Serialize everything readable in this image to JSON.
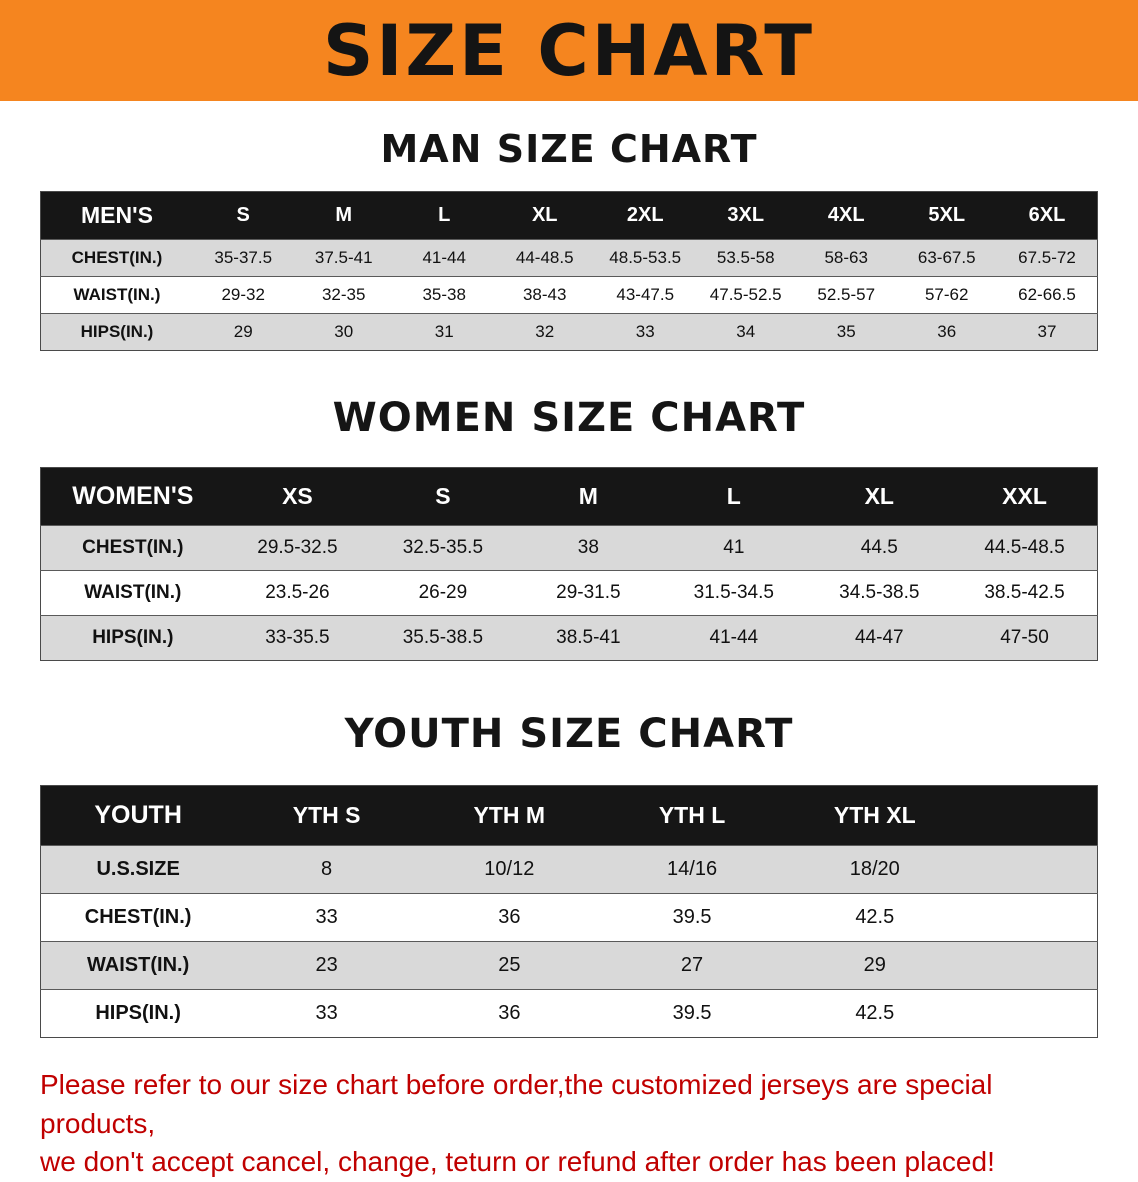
{
  "banner": {
    "title": "SIZE CHART",
    "bg_color": "#F5851F",
    "text_color": "#141414"
  },
  "sections": [
    {
      "id": "men",
      "heading": "MAN SIZE CHART",
      "table": {
        "header": [
          "MEN'S",
          "S",
          "M",
          "L",
          "XL",
          "2XL",
          "3XL",
          "4XL",
          "5XL",
          "6XL"
        ],
        "rows": [
          {
            "label": "CHEST(IN.)",
            "values": [
              "35-37.5",
              "37.5-41",
              "41-44",
              "44-48.5",
              "48.5-53.5",
              "53.5-58",
              "58-63",
              "63-67.5",
              "67.5-72"
            ]
          },
          {
            "label": "WAIST(IN.)",
            "values": [
              "29-32",
              "32-35",
              "35-38",
              "38-43",
              "43-47.5",
              "47.5-52.5",
              "52.5-57",
              "57-62",
              "62-66.5"
            ]
          },
          {
            "label": "HIPS(IN.)",
            "values": [
              "29",
              "30",
              "31",
              "32",
              "33",
              "34",
              "35",
              "36",
              "37"
            ]
          }
        ]
      }
    },
    {
      "id": "women",
      "heading": "WOMEN SIZE CHART",
      "table": {
        "header": [
          "WOMEN'S",
          "XS",
          "S",
          "M",
          "L",
          "XL",
          "XXL"
        ],
        "rows": [
          {
            "label": "CHEST(IN.)",
            "values": [
              "29.5-32.5",
              "32.5-35.5",
              "38",
              "41",
              "44.5",
              "44.5-48.5"
            ]
          },
          {
            "label": "WAIST(IN.)",
            "values": [
              "23.5-26",
              "26-29",
              "29-31.5",
              "31.5-34.5",
              "34.5-38.5",
              "38.5-42.5"
            ]
          },
          {
            "label": "HIPS(IN.)",
            "values": [
              "33-35.5",
              "35.5-38.5",
              "38.5-41",
              "41-44",
              "44-47",
              "47-50"
            ]
          }
        ]
      }
    },
    {
      "id": "youth",
      "heading": "YOUTH SIZE CHART",
      "table": {
        "header": [
          "YOUTH",
          "YTH S",
          "YTH M",
          "YTH L",
          "YTH XL"
        ],
        "rows": [
          {
            "label": "U.S.SIZE",
            "values": [
              "8",
              "10/12",
              "14/16",
              "18/20"
            ]
          },
          {
            "label": "CHEST(IN.)",
            "values": [
              "33",
              "36",
              "39.5",
              "42.5"
            ]
          },
          {
            "label": "WAIST(IN.)",
            "values": [
              "23",
              "25",
              "27",
              "29"
            ]
          },
          {
            "label": "HIPS(IN.)",
            "values": [
              "33",
              "36",
              "39.5",
              "42.5"
            ]
          }
        ]
      }
    }
  ],
  "disclaimer": {
    "color": "#C00000",
    "lines": [
      "Please refer to our size chart before order,the customized jerseys are special products,",
      "we don't accept cancel, change, teturn or refund after order has been placed!"
    ]
  }
}
